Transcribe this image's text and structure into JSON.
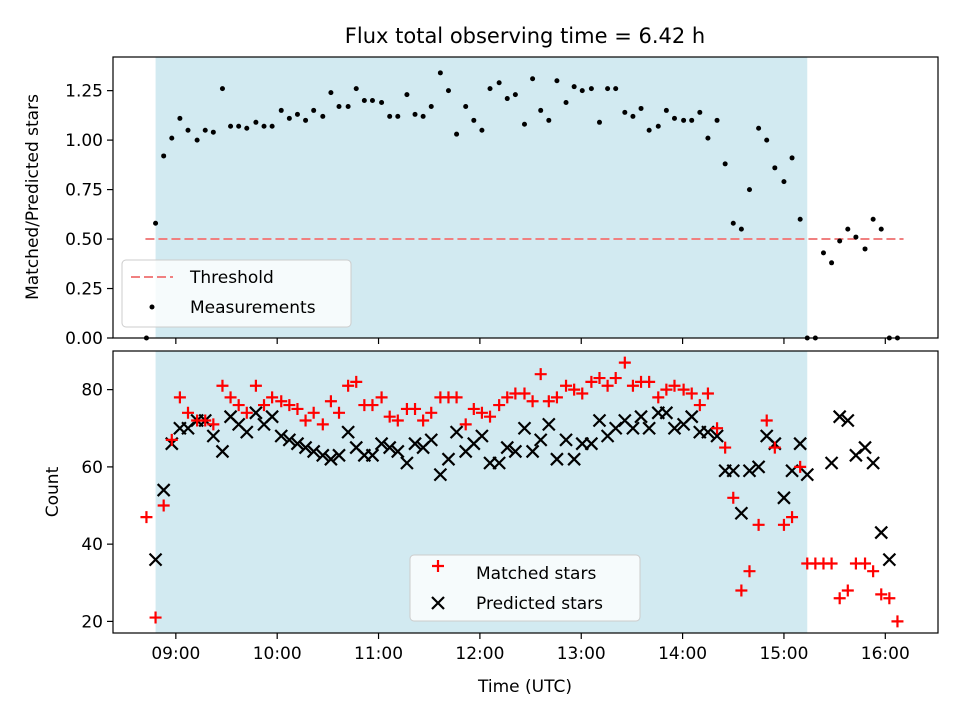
{
  "figure": {
    "title": "Flux total observing time = 6.42 h",
    "xlabel": "Time (UTC)",
    "xticks": [
      {
        "t": 9,
        "label": "09:00"
      },
      {
        "t": 10,
        "label": "10:00"
      },
      {
        "t": 11,
        "label": "11:00"
      },
      {
        "t": 12,
        "label": "12:00"
      },
      {
        "t": 13,
        "label": "13:00"
      },
      {
        "t": 14,
        "label": "14:00"
      },
      {
        "t": 15,
        "label": "15:00"
      },
      {
        "t": 16,
        "label": "16:00"
      }
    ],
    "xlim_hours": [
      8.38,
      16.52
    ],
    "shaded_interval_hours": [
      8.8,
      15.23
    ],
    "shade_color": "#add8e6"
  },
  "chart_data": [
    {
      "type": "scatter",
      "ylabel": "Matched/Predicted stars",
      "ylim": [
        0,
        1.42
      ],
      "yticks": [
        "0.00",
        "0.25",
        "0.50",
        "0.75",
        "1.00",
        "1.25"
      ],
      "grid": false,
      "legend_position": "lower-left",
      "threshold": {
        "name": "Threshold",
        "value": 0.5,
        "x_range_hours": [
          8.7,
          16.18
        ],
        "color": "#f08080",
        "style": "dashed"
      },
      "series": [
        {
          "name": "Measurements",
          "color": "#000000",
          "marker": "dot",
          "x": [
            8.71,
            8.8,
            8.88,
            8.96,
            9.04,
            9.12,
            9.21,
            9.29,
            9.37,
            9.46,
            9.54,
            9.62,
            9.7,
            9.79,
            9.87,
            9.95,
            10.04,
            10.12,
            10.2,
            10.28,
            10.36,
            10.45,
            10.53,
            10.61,
            10.7,
            10.78,
            10.86,
            10.94,
            11.03,
            11.11,
            11.19,
            11.28,
            11.36,
            11.44,
            11.52,
            11.61,
            11.69,
            11.77,
            11.86,
            11.94,
            12.02,
            12.1,
            12.19,
            12.27,
            12.35,
            12.44,
            12.52,
            12.6,
            12.68,
            12.76,
            12.85,
            12.93,
            13.01,
            13.1,
            13.18,
            13.26,
            13.34,
            13.43,
            13.51,
            13.59,
            13.67,
            13.76,
            13.84,
            13.92,
            14.01,
            14.09,
            14.17,
            14.25,
            14.34,
            14.42,
            14.5,
            14.58,
            14.66,
            14.75,
            14.83,
            14.91,
            15.0,
            15.08,
            15.16,
            15.23,
            15.31,
            15.39,
            15.47,
            15.55,
            15.63,
            15.71,
            15.8,
            15.88,
            15.96,
            16.04,
            16.12
          ],
          "y": [
            0.0,
            0.58,
            0.92,
            1.01,
            1.11,
            1.05,
            1.0,
            1.05,
            1.04,
            1.26,
            1.07,
            1.07,
            1.06,
            1.09,
            1.07,
            1.07,
            1.15,
            1.11,
            1.13,
            1.1,
            1.15,
            1.12,
            1.24,
            1.17,
            1.17,
            1.26,
            1.2,
            1.2,
            1.19,
            1.12,
            1.12,
            1.23,
            1.13,
            1.12,
            1.17,
            1.34,
            1.25,
            1.03,
            1.17,
            1.1,
            1.05,
            1.26,
            1.29,
            1.21,
            1.23,
            1.08,
            1.31,
            1.15,
            1.1,
            1.3,
            1.19,
            1.27,
            1.25,
            1.26,
            1.09,
            1.26,
            1.26,
            1.14,
            1.12,
            1.16,
            1.05,
            1.07,
            1.15,
            1.11,
            1.1,
            1.1,
            1.14,
            1.01,
            1.1,
            0.88,
            0.58,
            0.55,
            0.75,
            1.06,
            1.0,
            0.86,
            0.79,
            0.91,
            0.6,
            0.0,
            0.0,
            0.43,
            0.38,
            0.49,
            0.55,
            0.51,
            0.45,
            0.6,
            0.55,
            0.0,
            0.0
          ]
        }
      ]
    },
    {
      "type": "scatter",
      "ylabel": "Count",
      "ylim": [
        17,
        90
      ],
      "yticks": [
        "20",
        "40",
        "60",
        "80"
      ],
      "grid": false,
      "legend_position": "lower-center",
      "series": [
        {
          "name": "Matched stars",
          "color": "#ff0000",
          "marker": "plus",
          "x": [
            8.71,
            8.8,
            8.88,
            8.96,
            9.04,
            9.12,
            9.21,
            9.29,
            9.37,
            9.46,
            9.54,
            9.62,
            9.7,
            9.79,
            9.87,
            9.95,
            10.04,
            10.12,
            10.2,
            10.28,
            10.36,
            10.45,
            10.53,
            10.61,
            10.7,
            10.78,
            10.86,
            10.94,
            11.03,
            11.11,
            11.19,
            11.28,
            11.36,
            11.44,
            11.52,
            11.61,
            11.69,
            11.77,
            11.86,
            11.94,
            12.02,
            12.1,
            12.19,
            12.27,
            12.35,
            12.44,
            12.52,
            12.6,
            12.68,
            12.76,
            12.85,
            12.93,
            13.01,
            13.1,
            13.18,
            13.26,
            13.34,
            13.43,
            13.51,
            13.59,
            13.67,
            13.76,
            13.84,
            13.92,
            14.01,
            14.09,
            14.17,
            14.25,
            14.34,
            14.42,
            14.5,
            14.58,
            14.66,
            14.75,
            14.83,
            14.91,
            15.0,
            15.08,
            15.16,
            15.23,
            15.31,
            15.39,
            15.47,
            15.55,
            15.63,
            15.71,
            15.8,
            15.88,
            15.96,
            16.04,
            16.12
          ],
          "y": [
            47,
            21,
            50,
            67,
            78,
            74,
            72,
            72,
            71,
            81,
            78,
            76,
            74,
            81,
            76,
            78,
            77,
            76,
            75,
            72,
            74,
            71,
            77,
            74,
            81,
            82,
            76,
            76,
            78,
            73,
            72,
            75,
            75,
            72,
            74,
            78,
            78,
            78,
            71,
            75,
            74,
            73,
            76,
            78,
            79,
            79,
            77,
            84,
            77,
            78,
            81,
            80,
            79,
            82,
            83,
            81,
            83,
            87,
            81,
            82,
            82,
            78,
            80,
            81,
            80,
            79,
            76,
            79,
            70,
            65,
            52,
            28,
            33,
            45,
            72,
            65,
            45,
            47,
            60,
            35,
            35,
            35,
            35,
            26,
            28,
            35,
            35,
            33,
            27,
            26,
            20
          ]
        },
        {
          "name": "Predicted stars",
          "color": "#000000",
          "marker": "x",
          "x": [
            8.8,
            8.88,
            8.96,
            9.04,
            9.12,
            9.21,
            9.29,
            9.37,
            9.46,
            9.54,
            9.62,
            9.7,
            9.79,
            9.87,
            9.95,
            10.04,
            10.12,
            10.2,
            10.28,
            10.36,
            10.45,
            10.53,
            10.61,
            10.7,
            10.78,
            10.86,
            10.94,
            11.03,
            11.11,
            11.19,
            11.28,
            11.36,
            11.44,
            11.52,
            11.61,
            11.69,
            11.77,
            11.86,
            11.94,
            12.02,
            12.1,
            12.19,
            12.27,
            12.35,
            12.44,
            12.52,
            12.6,
            12.68,
            12.76,
            12.85,
            12.93,
            13.01,
            13.1,
            13.18,
            13.26,
            13.34,
            13.43,
            13.51,
            13.59,
            13.67,
            13.76,
            13.84,
            13.92,
            14.01,
            14.09,
            14.17,
            14.25,
            14.34,
            14.42,
            14.5,
            14.58,
            14.66,
            14.75,
            14.83,
            14.91,
            15.0,
            15.08,
            15.16,
            15.23,
            15.47,
            15.55,
            15.63,
            15.71,
            15.8,
            15.88,
            15.96,
            16.04
          ],
          "y": [
            36,
            54,
            66,
            70,
            70,
            72,
            72,
            68,
            64,
            73,
            71,
            69,
            74,
            71,
            73,
            68,
            67,
            66,
            65,
            64,
            63,
            62,
            63,
            69,
            65,
            63,
            63,
            66,
            65,
            64,
            61,
            66,
            65,
            67,
            58,
            62,
            69,
            64,
            66,
            68,
            61,
            61,
            65,
            64,
            70,
            64,
            67,
            71,
            62,
            67,
            62,
            66,
            66,
            72,
            68,
            70,
            72,
            70,
            73,
            70,
            74,
            74,
            70,
            71,
            73,
            69,
            69,
            68,
            59,
            59,
            48,
            59,
            60,
            68,
            66,
            52,
            59,
            66,
            58,
            61,
            73,
            72,
            63,
            65,
            61,
            43,
            36
          ]
        }
      ]
    }
  ]
}
